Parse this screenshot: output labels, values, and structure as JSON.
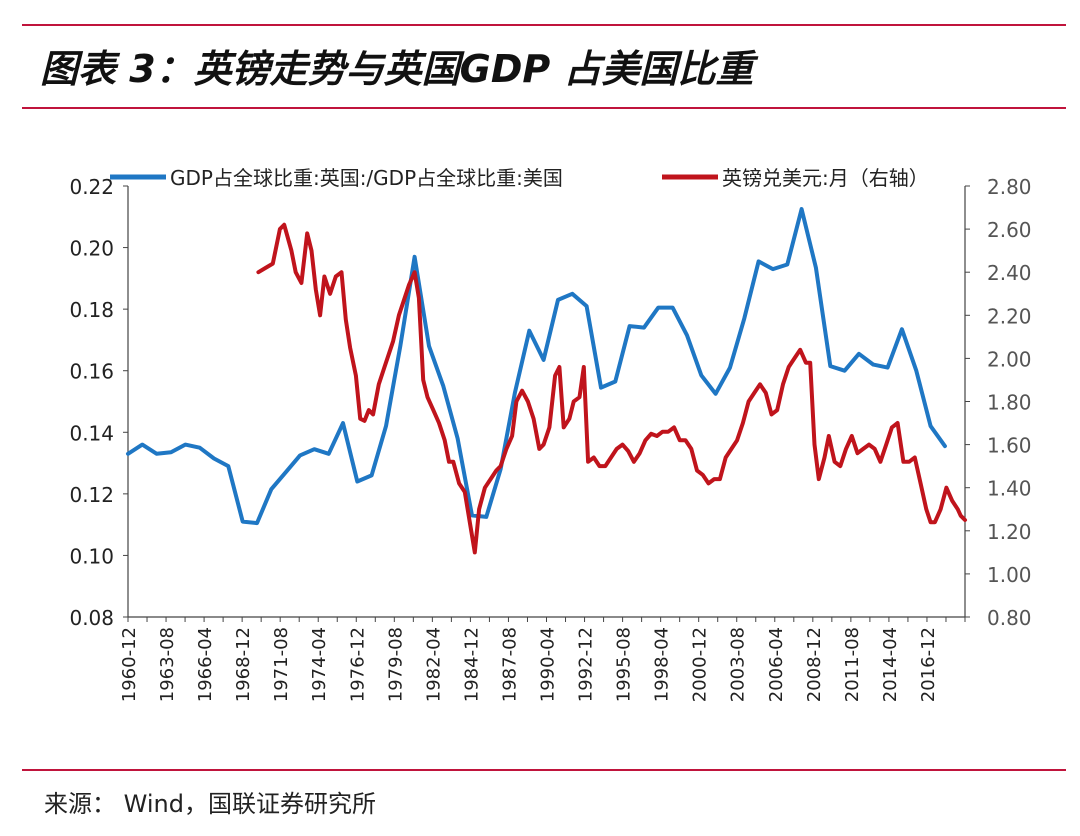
{
  "header": {
    "title": "图表 3：英镑走势与英国GDP 占美国比重"
  },
  "footer": {
    "source": "来源：  Wind，国联证券研究所"
  },
  "chart_data": {
    "type": "line",
    "title": "",
    "xlabel": "",
    "ylabel_left": "",
    "ylabel_right": "",
    "legend_position": "top",
    "x_tick_labels": [
      "1960-12",
      "1963-08",
      "1966-04",
      "1968-12",
      "1971-08",
      "1974-04",
      "1976-12",
      "1979-08",
      "1982-04",
      "1984-12",
      "1987-08",
      "1990-04",
      "1992-12",
      "1995-08",
      "1998-04",
      "2000-12",
      "2003-08",
      "2006-04",
      "2008-12",
      "2011-08",
      "2014-04",
      "2016-12"
    ],
    "x_range": [
      1960.9,
      2019.3
    ],
    "y_left": {
      "range": [
        0.08,
        0.22
      ],
      "ticks": [
        "0.08",
        "0.10",
        "0.12",
        "0.14",
        "0.16",
        "0.18",
        "0.20",
        "0.22"
      ]
    },
    "y_right": {
      "range": [
        0.8,
        2.8
      ],
      "ticks": [
        "0.80",
        "1.00",
        "1.20",
        "1.40",
        "1.60",
        "1.80",
        "2.00",
        "2.20",
        "2.40",
        "2.60",
        "2.80"
      ]
    },
    "series": [
      {
        "name": "GDP占全球比重:英国:/GDP占全球比重:美国",
        "axis": "left",
        "color": "#1f77c4",
        "points": [
          [
            1960.9,
            0.133
          ],
          [
            1961.9,
            0.136
          ],
          [
            1962.9,
            0.133
          ],
          [
            1963.9,
            0.1335
          ],
          [
            1964.9,
            0.136
          ],
          [
            1965.9,
            0.135
          ],
          [
            1966.9,
            0.1315
          ],
          [
            1967.9,
            0.129
          ],
          [
            1968.9,
            0.111
          ],
          [
            1969.9,
            0.1105
          ],
          [
            1970.9,
            0.1215
          ],
          [
            1971.9,
            0.127
          ],
          [
            1972.9,
            0.1325
          ],
          [
            1973.9,
            0.1345
          ],
          [
            1974.9,
            0.133
          ],
          [
            1975.9,
            0.143
          ],
          [
            1976.9,
            0.124
          ],
          [
            1977.9,
            0.126
          ],
          [
            1978.9,
            0.142
          ],
          [
            1979.9,
            0.168
          ],
          [
            1980.9,
            0.197
          ],
          [
            1981.9,
            0.168
          ],
          [
            1982.9,
            0.155
          ],
          [
            1983.9,
            0.138
          ],
          [
            1984.9,
            0.113
          ],
          [
            1985.9,
            0.1125
          ],
          [
            1986.9,
            0.128
          ],
          [
            1987.9,
            0.153
          ],
          [
            1988.9,
            0.173
          ],
          [
            1989.9,
            0.1635
          ],
          [
            1990.9,
            0.183
          ],
          [
            1991.9,
            0.185
          ],
          [
            1992.9,
            0.181
          ],
          [
            1993.9,
            0.1545
          ],
          [
            1994.9,
            0.1565
          ],
          [
            1995.9,
            0.1745
          ],
          [
            1996.9,
            0.174
          ],
          [
            1997.9,
            0.1805
          ],
          [
            1998.9,
            0.1805
          ],
          [
            1999.9,
            0.1715
          ],
          [
            2000.9,
            0.1585
          ],
          [
            2001.9,
            0.1525
          ],
          [
            2002.9,
            0.161
          ],
          [
            2003.9,
            0.177
          ],
          [
            2004.9,
            0.1955
          ],
          [
            2005.9,
            0.193
          ],
          [
            2006.9,
            0.1945
          ],
          [
            2007.9,
            0.2125
          ],
          [
            2008.9,
            0.1935
          ],
          [
            2009.9,
            0.1615
          ],
          [
            2010.9,
            0.16
          ],
          [
            2011.9,
            0.1655
          ],
          [
            2012.9,
            0.162
          ],
          [
            2013.9,
            0.161
          ],
          [
            2014.9,
            0.1735
          ],
          [
            2015.9,
            0.16
          ],
          [
            2016.9,
            0.142
          ],
          [
            2017.9,
            0.1355
          ]
        ]
      },
      {
        "name": "英镑兑美元:月（右轴）",
        "axis": "right",
        "color": "#c0141c",
        "points": [
          [
            1970.0,
            2.4
          ],
          [
            1970.5,
            2.42
          ],
          [
            1971.0,
            2.44
          ],
          [
            1971.5,
            2.6
          ],
          [
            1971.8,
            2.62
          ],
          [
            1972.3,
            2.5
          ],
          [
            1972.6,
            2.4
          ],
          [
            1973.0,
            2.35
          ],
          [
            1973.4,
            2.58
          ],
          [
            1973.7,
            2.5
          ],
          [
            1974.0,
            2.32
          ],
          [
            1974.3,
            2.2
          ],
          [
            1974.6,
            2.38
          ],
          [
            1975.0,
            2.3
          ],
          [
            1975.4,
            2.38
          ],
          [
            1975.8,
            2.4
          ],
          [
            1976.1,
            2.18
          ],
          [
            1976.4,
            2.05
          ],
          [
            1976.8,
            1.92
          ],
          [
            1977.1,
            1.72
          ],
          [
            1977.4,
            1.71
          ],
          [
            1977.7,
            1.76
          ],
          [
            1978.0,
            1.74
          ],
          [
            1978.4,
            1.88
          ],
          [
            1978.8,
            1.96
          ],
          [
            1979.1,
            2.02
          ],
          [
            1979.4,
            2.08
          ],
          [
            1979.8,
            2.2
          ],
          [
            1980.1,
            2.26
          ],
          [
            1980.5,
            2.34
          ],
          [
            1980.9,
            2.4
          ],
          [
            1981.2,
            2.28
          ],
          [
            1981.5,
            1.9
          ],
          [
            1981.8,
            1.82
          ],
          [
            1982.2,
            1.76
          ],
          [
            1982.6,
            1.7
          ],
          [
            1983.0,
            1.62
          ],
          [
            1983.3,
            1.52
          ],
          [
            1983.6,
            1.52
          ],
          [
            1984.0,
            1.42
          ],
          [
            1984.4,
            1.38
          ],
          [
            1984.8,
            1.22
          ],
          [
            1985.1,
            1.1
          ],
          [
            1985.4,
            1.3
          ],
          [
            1985.8,
            1.4
          ],
          [
            1986.2,
            1.44
          ],
          [
            1986.6,
            1.48
          ],
          [
            1986.9,
            1.5
          ],
          [
            1987.3,
            1.58
          ],
          [
            1987.7,
            1.64
          ],
          [
            1988.0,
            1.8
          ],
          [
            1988.4,
            1.85
          ],
          [
            1988.8,
            1.8
          ],
          [
            1989.2,
            1.72
          ],
          [
            1989.6,
            1.58
          ],
          [
            1989.9,
            1.6
          ],
          [
            1990.3,
            1.68
          ],
          [
            1990.7,
            1.92
          ],
          [
            1991.0,
            1.96
          ],
          [
            1991.3,
            1.68
          ],
          [
            1991.7,
            1.72
          ],
          [
            1992.0,
            1.8
          ],
          [
            1992.4,
            1.82
          ],
          [
            1992.7,
            1.96
          ],
          [
            1993.0,
            1.52
          ],
          [
            1993.4,
            1.54
          ],
          [
            1993.8,
            1.5
          ],
          [
            1994.2,
            1.5
          ],
          [
            1994.6,
            1.54
          ],
          [
            1995.0,
            1.58
          ],
          [
            1995.4,
            1.6
          ],
          [
            1995.8,
            1.57
          ],
          [
            1996.2,
            1.52
          ],
          [
            1996.6,
            1.56
          ],
          [
            1997.0,
            1.62
          ],
          [
            1997.4,
            1.65
          ],
          [
            1997.8,
            1.64
          ],
          [
            1998.2,
            1.66
          ],
          [
            1998.6,
            1.66
          ],
          [
            1999.0,
            1.68
          ],
          [
            1999.4,
            1.62
          ],
          [
            1999.8,
            1.62
          ],
          [
            2000.2,
            1.58
          ],
          [
            2000.6,
            1.48
          ],
          [
            2001.0,
            1.46
          ],
          [
            2001.4,
            1.42
          ],
          [
            2001.8,
            1.44
          ],
          [
            2002.2,
            1.44
          ],
          [
            2002.6,
            1.54
          ],
          [
            2003.0,
            1.58
          ],
          [
            2003.4,
            1.62
          ],
          [
            2003.8,
            1.7
          ],
          [
            2004.2,
            1.8
          ],
          [
            2004.6,
            1.84
          ],
          [
            2005.0,
            1.88
          ],
          [
            2005.4,
            1.84
          ],
          [
            2005.8,
            1.74
          ],
          [
            2006.2,
            1.76
          ],
          [
            2006.6,
            1.88
          ],
          [
            2007.0,
            1.96
          ],
          [
            2007.4,
            2.0
          ],
          [
            2007.8,
            2.04
          ],
          [
            2008.2,
            1.98
          ],
          [
            2008.5,
            1.98
          ],
          [
            2008.8,
            1.6
          ],
          [
            2009.1,
            1.44
          ],
          [
            2009.5,
            1.54
          ],
          [
            2009.8,
            1.64
          ],
          [
            2010.2,
            1.52
          ],
          [
            2010.6,
            1.5
          ],
          [
            2011.0,
            1.58
          ],
          [
            2011.4,
            1.64
          ],
          [
            2011.8,
            1.56
          ],
          [
            2012.2,
            1.58
          ],
          [
            2012.6,
            1.6
          ],
          [
            2013.0,
            1.58
          ],
          [
            2013.4,
            1.52
          ],
          [
            2013.8,
            1.6
          ],
          [
            2014.2,
            1.68
          ],
          [
            2014.6,
            1.7
          ],
          [
            2015.0,
            1.52
          ],
          [
            2015.4,
            1.52
          ],
          [
            2015.8,
            1.54
          ],
          [
            2016.2,
            1.42
          ],
          [
            2016.6,
            1.3
          ],
          [
            2016.9,
            1.24
          ],
          [
            2017.2,
            1.24
          ],
          [
            2017.6,
            1.3
          ],
          [
            2018.0,
            1.4
          ],
          [
            2018.4,
            1.34
          ],
          [
            2018.8,
            1.3
          ],
          [
            2019.0,
            1.27
          ],
          [
            2019.3,
            1.25
          ]
        ]
      }
    ]
  }
}
